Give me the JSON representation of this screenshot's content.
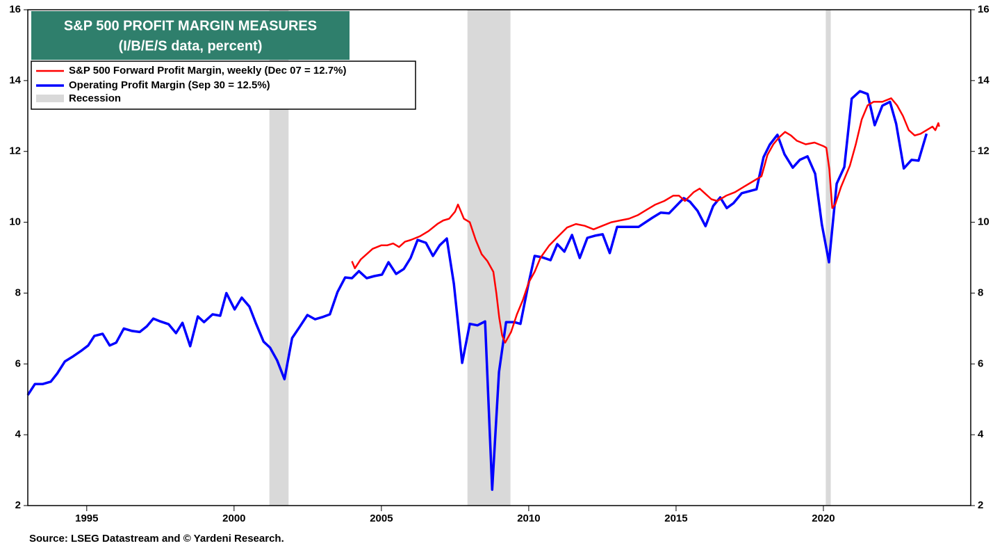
{
  "chart_data": {
    "type": "line",
    "title": "S&P 500 PROFIT MARGIN MEASURES",
    "subtitle": "(I/B/E/S data, percent)",
    "source": "Source: LSEG Datastream and © Yardeni Research.",
    "xlim": [
      1993,
      2025
    ],
    "xticks": [
      1995,
      2000,
      2005,
      2010,
      2015,
      2020
    ],
    "ylim": [
      2,
      16
    ],
    "yticks": [
      2,
      4,
      6,
      8,
      10,
      12,
      14,
      16
    ],
    "y2lim": [
      2,
      16
    ],
    "y2ticks": [
      2,
      4,
      6,
      8,
      10,
      12,
      14,
      16
    ],
    "legend": "upper left",
    "recession": {
      "name": "Recession",
      "color": "#d9d9d9",
      "periods": [
        [
          2001.2,
          2001.85
        ],
        [
          2007.92,
          2009.38
        ],
        [
          2020.08,
          2020.25
        ]
      ]
    },
    "series": [
      {
        "name": "S&P 500 Forward Profit Margin, weekly (Dec 07 = 12.7%)",
        "color": "#ff0000",
        "x": [
          2004.0,
          2004.1,
          2004.3,
          2004.5,
          2004.7,
          2005.0,
          2005.2,
          2005.4,
          2005.6,
          2005.8,
          2006.0,
          2006.3,
          2006.6,
          2006.9,
          2007.1,
          2007.3,
          2007.5,
          2007.6,
          2007.7,
          2007.8,
          2008.0,
          2008.2,
          2008.4,
          2008.6,
          2008.8,
          2008.9,
          2009.0,
          2009.1,
          2009.2,
          2009.4,
          2009.6,
          2009.8,
          2010.0,
          2010.2,
          2010.4,
          2010.7,
          2011.0,
          2011.3,
          2011.6,
          2011.9,
          2012.2,
          2012.5,
          2012.8,
          2013.1,
          2013.4,
          2013.7,
          2014.0,
          2014.3,
          2014.6,
          2014.9,
          2015.1,
          2015.3,
          2015.6,
          2015.8,
          2016.0,
          2016.2,
          2016.4,
          2016.7,
          2017.0,
          2017.3,
          2017.6,
          2017.9,
          2018.0,
          2018.1,
          2018.3,
          2018.5,
          2018.7,
          2018.9,
          2019.1,
          2019.4,
          2019.7,
          2020.0,
          2020.1,
          2020.2,
          2020.3,
          2020.4,
          2020.6,
          2020.9,
          2021.1,
          2021.3,
          2021.5,
          2021.7,
          2022.0,
          2022.3,
          2022.5,
          2022.7,
          2022.9,
          2023.1,
          2023.3,
          2023.5,
          2023.7,
          2023.8,
          2023.9,
          2023.93
        ],
        "values": [
          8.9,
          8.7,
          8.95,
          9.1,
          9.25,
          9.35,
          9.35,
          9.4,
          9.3,
          9.45,
          9.5,
          9.6,
          9.75,
          9.95,
          10.05,
          10.1,
          10.3,
          10.5,
          10.3,
          10.1,
          10.0,
          9.5,
          9.1,
          8.9,
          8.6,
          8.0,
          7.3,
          6.8,
          6.6,
          6.9,
          7.4,
          7.8,
          8.3,
          8.6,
          9.0,
          9.35,
          9.6,
          9.85,
          9.95,
          9.9,
          9.8,
          9.9,
          10.0,
          10.05,
          10.1,
          10.2,
          10.35,
          10.5,
          10.6,
          10.75,
          10.75,
          10.6,
          10.85,
          10.95,
          10.8,
          10.65,
          10.6,
          10.75,
          10.85,
          11.0,
          11.15,
          11.3,
          11.6,
          11.9,
          12.2,
          12.4,
          12.55,
          12.45,
          12.3,
          12.2,
          12.25,
          12.15,
          12.1,
          11.5,
          10.4,
          10.5,
          11.0,
          11.6,
          12.2,
          12.9,
          13.3,
          13.4,
          13.4,
          13.5,
          13.3,
          13.0,
          12.6,
          12.45,
          12.5,
          12.6,
          12.7,
          12.6,
          12.8,
          12.7
        ]
      },
      {
        "name": "Operating Profit Margin (Sep 30 = 12.5%)",
        "color": "#0000ff",
        "x": [
          1993.0,
          1993.24,
          1993.5,
          1993.78,
          1994.0,
          1994.26,
          1994.55,
          1994.83,
          1995.05,
          1995.26,
          1995.54,
          1995.78,
          1996.0,
          1996.26,
          1996.54,
          1996.8,
          1997.04,
          1997.26,
          1997.5,
          1997.78,
          1998.03,
          1998.25,
          1998.51,
          1998.77,
          1998.98,
          1999.27,
          1999.53,
          1999.74,
          2000.02,
          2000.26,
          2000.52,
          2000.75,
          2001.0,
          2001.22,
          2001.46,
          2001.71,
          2001.97,
          2002.23,
          2002.49,
          2002.75,
          2002.99,
          2003.25,
          2003.51,
          2003.77,
          2004.0,
          2004.24,
          2004.5,
          2004.76,
          2005.02,
          2005.24,
          2005.5,
          2005.76,
          2005.99,
          2006.23,
          2006.51,
          2006.75,
          2006.98,
          2007.22,
          2007.46,
          2007.74,
          2008.0,
          2008.26,
          2008.52,
          2008.76,
          2008.99,
          2009.23,
          2009.51,
          2009.72,
          2009.98,
          2010.2,
          2010.46,
          2010.74,
          2010.97,
          2011.21,
          2011.47,
          2011.73,
          2011.99,
          2012.25,
          2012.51,
          2012.75,
          2013.0,
          2013.3,
          2013.73,
          2014.2,
          2014.48,
          2014.76,
          2015.26,
          2015.47,
          2015.73,
          2016.0,
          2016.26,
          2016.5,
          2016.72,
          2016.95,
          2017.23,
          2017.73,
          2017.97,
          2018.18,
          2018.44,
          2018.68,
          2018.96,
          2019.2,
          2019.46,
          2019.72,
          2019.95,
          2020.19,
          2020.45,
          2020.71,
          2020.96,
          2021.24,
          2021.5,
          2021.74,
          2022.0,
          2022.26,
          2022.47,
          2022.73,
          2022.99,
          2023.23,
          2023.5
        ],
        "values": [
          5.12,
          5.43,
          5.43,
          5.5,
          5.73,
          6.07,
          6.22,
          6.38,
          6.52,
          6.79,
          6.85,
          6.52,
          6.6,
          7.0,
          6.93,
          6.9,
          7.06,
          7.28,
          7.2,
          7.12,
          6.87,
          7.16,
          6.5,
          7.34,
          7.18,
          7.4,
          7.36,
          8.0,
          7.54,
          7.87,
          7.62,
          7.13,
          6.63,
          6.46,
          6.1,
          5.57,
          6.73,
          7.05,
          7.38,
          7.26,
          7.32,
          7.4,
          8.03,
          8.44,
          8.42,
          8.62,
          8.42,
          8.48,
          8.52,
          8.87,
          8.54,
          8.68,
          8.99,
          9.5,
          9.42,
          9.05,
          9.35,
          9.54,
          8.26,
          6.03,
          7.13,
          7.09,
          7.2,
          2.45,
          5.77,
          7.18,
          7.18,
          7.13,
          8.22,
          9.05,
          9.01,
          8.93,
          9.38,
          9.17,
          9.64,
          8.99,
          9.56,
          9.62,
          9.66,
          9.13,
          9.87,
          9.87,
          9.87,
          10.13,
          10.27,
          10.25,
          10.68,
          10.58,
          10.32,
          9.89,
          10.46,
          10.7,
          10.4,
          10.54,
          10.82,
          10.93,
          11.84,
          12.19,
          12.47,
          11.92,
          11.54,
          11.76,
          11.86,
          11.37,
          9.93,
          8.87,
          11.09,
          11.56,
          13.49,
          13.7,
          13.62,
          12.74,
          13.29,
          13.4,
          12.78,
          11.52,
          11.76,
          11.74,
          12.5
        ]
      }
    ]
  }
}
